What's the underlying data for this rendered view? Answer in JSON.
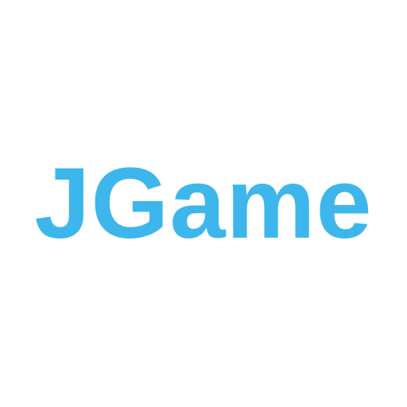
{
  "app": {
    "title": "JGame"
  },
  "logo": {
    "text": "JGame",
    "color": "#3db6ec"
  },
  "background": {
    "color": "#ffffff"
  }
}
